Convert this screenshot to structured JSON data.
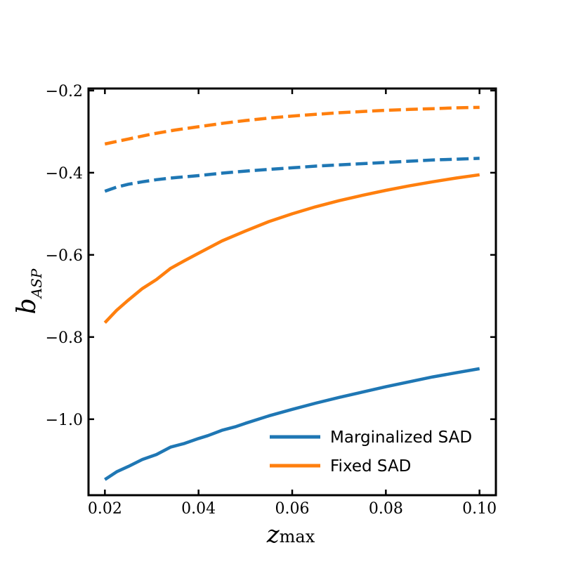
{
  "chart_data": {
    "type": "line",
    "xlabel": {
      "base": "z",
      "sub": "max"
    },
    "ylabel": {
      "base": "b",
      "sub": "ASP"
    },
    "xlim": [
      0.0165,
      0.1035
    ],
    "ylim": [
      -1.185,
      -0.195
    ],
    "xticks": [
      0.02,
      0.04,
      0.06,
      0.08,
      0.1
    ],
    "xtick_labels": [
      "0.02",
      "0.04",
      "0.06",
      "0.08",
      "0.10"
    ],
    "yticks": [
      -0.2,
      -0.4,
      -0.6,
      -0.8,
      -1.0
    ],
    "ytick_labels": [
      "−0.2",
      "−0.4",
      "−0.6",
      "−0.8",
      "−1.0"
    ],
    "series": [
      {
        "name": "Marginalized SAD",
        "color": "#1f77b4",
        "style": "solid",
        "in_legend": true,
        "x": [
          0.02,
          0.0225,
          0.025,
          0.028,
          0.031,
          0.034,
          0.037,
          0.04,
          0.042,
          0.045,
          0.048,
          0.05,
          0.055,
          0.06,
          0.065,
          0.07,
          0.075,
          0.08,
          0.085,
          0.09,
          0.095,
          0.1
        ],
        "y": [
          -1.147,
          -1.128,
          -1.115,
          -1.098,
          -1.086,
          -1.068,
          -1.059,
          -1.047,
          -1.04,
          -1.027,
          -1.018,
          -1.01,
          -0.992,
          -0.976,
          -0.961,
          -0.947,
          -0.934,
          -0.921,
          -0.909,
          -0.897,
          -0.887,
          -0.877
        ]
      },
      {
        "name": "Fixed SAD",
        "color": "#ff7f0e",
        "style": "solid",
        "in_legend": true,
        "x": [
          0.02,
          0.0225,
          0.025,
          0.028,
          0.031,
          0.034,
          0.037,
          0.04,
          0.045,
          0.05,
          0.055,
          0.06,
          0.065,
          0.07,
          0.075,
          0.08,
          0.085,
          0.09,
          0.095,
          0.1
        ],
        "y": [
          -0.765,
          -0.735,
          -0.71,
          -0.682,
          -0.66,
          -0.633,
          -0.614,
          -0.596,
          -0.566,
          -0.542,
          -0.519,
          -0.5,
          -0.483,
          -0.468,
          -0.455,
          -0.443,
          -0.432,
          -0.422,
          -0.413,
          -0.405
        ]
      },
      {
        "name": "Marginalized SAD (dashed)",
        "color": "#1f77b4",
        "style": "dashed",
        "in_legend": false,
        "x": [
          0.02,
          0.0225,
          0.025,
          0.028,
          0.031,
          0.034,
          0.037,
          0.04,
          0.045,
          0.05,
          0.055,
          0.06,
          0.065,
          0.07,
          0.075,
          0.08,
          0.085,
          0.09,
          0.095,
          0.1
        ],
        "y": [
          -0.445,
          -0.435,
          -0.428,
          -0.422,
          -0.417,
          -0.413,
          -0.41,
          -0.407,
          -0.401,
          -0.396,
          -0.392,
          -0.388,
          -0.384,
          -0.381,
          -0.378,
          -0.375,
          -0.372,
          -0.369,
          -0.367,
          -0.365
        ]
      },
      {
        "name": "Fixed SAD (dashed)",
        "color": "#ff7f0e",
        "style": "dashed",
        "in_legend": false,
        "x": [
          0.02,
          0.025,
          0.03,
          0.035,
          0.04,
          0.045,
          0.05,
          0.055,
          0.06,
          0.065,
          0.07,
          0.075,
          0.08,
          0.085,
          0.09,
          0.095,
          0.1
        ],
        "y": [
          -0.33,
          -0.318,
          -0.306,
          -0.296,
          -0.288,
          -0.28,
          -0.273,
          -0.267,
          -0.262,
          -0.258,
          -0.254,
          -0.251,
          -0.248,
          -0.246,
          -0.244,
          -0.242,
          -0.241
        ]
      }
    ],
    "legend": {
      "placement": "lower-right",
      "entries": [
        "Marginalized SAD",
        "Fixed SAD"
      ]
    }
  }
}
